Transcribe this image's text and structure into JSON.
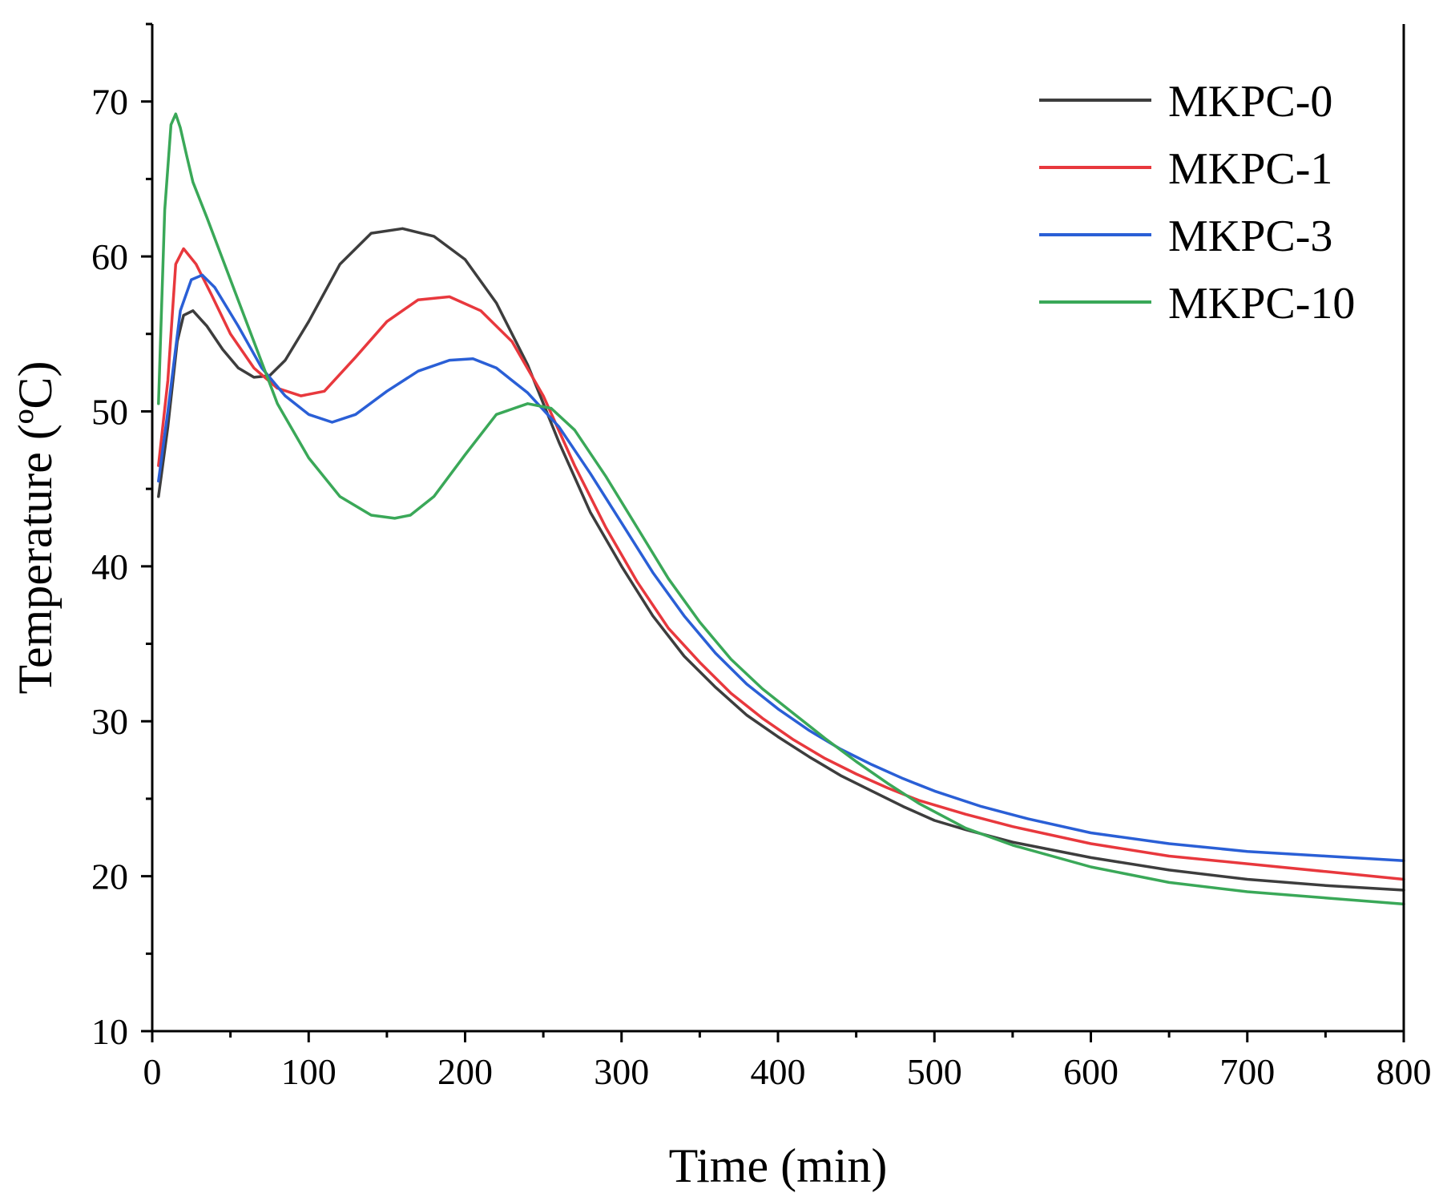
{
  "chart_data": {
    "type": "line",
    "title": "",
    "xlabel": "Time (min)",
    "ylabel": "Temperature (ºC)",
    "xlim": [
      0,
      800
    ],
    "ylim": [
      10,
      75
    ],
    "xticks": [
      0,
      100,
      200,
      300,
      400,
      500,
      600,
      700,
      800
    ],
    "yticks": [
      10,
      20,
      30,
      40,
      50,
      60,
      70
    ],
    "xtick_labels": [
      "0",
      "100",
      "200",
      "300",
      "400",
      "500",
      "600",
      "700",
      "800"
    ],
    "ytick_labels": [
      "10",
      "20",
      "30",
      "40",
      "50",
      "60",
      "70"
    ],
    "legend_position": "top-right",
    "grid": false,
    "series": [
      {
        "name": "MKPC-0",
        "color": "#3d3d3d",
        "x": [
          4,
          10,
          16,
          20,
          26,
          35,
          45,
          55,
          65,
          75,
          85,
          100,
          120,
          140,
          160,
          180,
          200,
          220,
          240,
          260,
          280,
          300,
          320,
          340,
          360,
          380,
          400,
          420,
          440,
          460,
          480,
          500,
          520,
          550,
          600,
          650,
          700,
          750,
          800
        ],
        "y": [
          44.5,
          49,
          54.5,
          56.2,
          56.5,
          55.5,
          54,
          52.8,
          52.2,
          52.3,
          53.3,
          55.8,
          59.5,
          61.5,
          61.8,
          61.3,
          59.8,
          57,
          53,
          48,
          43.5,
          40,
          36.8,
          34.2,
          32.2,
          30.4,
          29,
          27.7,
          26.5,
          25.5,
          24.5,
          23.6,
          23.0,
          22.2,
          21.2,
          20.4,
          19.8,
          19.4,
          19.1
        ]
      },
      {
        "name": "MKPC-1",
        "color": "#e8383d",
        "x": [
          4,
          10,
          15,
          20,
          28,
          38,
          50,
          65,
          80,
          95,
          110,
          130,
          150,
          170,
          190,
          210,
          230,
          250,
          270,
          290,
          310,
          330,
          350,
          370,
          390,
          410,
          430,
          450,
          470,
          490,
          520,
          550,
          600,
          650,
          700,
          750,
          800
        ],
        "y": [
          46.5,
          52,
          59.5,
          60.5,
          59.5,
          57.5,
          55,
          52.8,
          51.5,
          51.0,
          51.3,
          53.5,
          55.8,
          57.2,
          57.4,
          56.5,
          54.5,
          51,
          46.5,
          42.5,
          39,
          36,
          33.8,
          31.8,
          30.2,
          28.8,
          27.6,
          26.6,
          25.7,
          24.9,
          24,
          23.2,
          22.1,
          21.3,
          20.8,
          20.3,
          19.8
        ]
      },
      {
        "name": "MKPC-3",
        "color": "#2a5fd6",
        "x": [
          4,
          10,
          18,
          25,
          32,
          40,
          55,
          70,
          85,
          100,
          115,
          130,
          150,
          170,
          190,
          205,
          220,
          240,
          260,
          280,
          300,
          320,
          340,
          360,
          380,
          400,
          420,
          440,
          460,
          480,
          500,
          530,
          560,
          600,
          650,
          700,
          750,
          800
        ],
        "y": [
          45.5,
          50,
          56.5,
          58.5,
          58.8,
          58,
          55.5,
          52.8,
          51,
          49.8,
          49.3,
          49.8,
          51.3,
          52.6,
          53.3,
          53.4,
          52.8,
          51.2,
          49,
          46,
          42.8,
          39.6,
          36.8,
          34.4,
          32.4,
          30.8,
          29.4,
          28.2,
          27.2,
          26.3,
          25.5,
          24.5,
          23.7,
          22.8,
          22.1,
          21.6,
          21.3,
          21.0
        ]
      },
      {
        "name": "MKPC-10",
        "color": "#3aa858",
        "x": [
          4,
          8,
          12,
          15,
          18,
          22,
          26,
          35,
          50,
          65,
          80,
          100,
          120,
          140,
          155,
          165,
          180,
          200,
          220,
          240,
          255,
          270,
          290,
          310,
          330,
          350,
          370,
          390,
          410,
          430,
          450,
          470,
          490,
          520,
          550,
          600,
          650,
          700,
          750,
          800
        ],
        "y": [
          50.5,
          63,
          68.5,
          69.2,
          68.3,
          66.5,
          64.8,
          62.5,
          58.5,
          54.5,
          50.5,
          47,
          44.5,
          43.3,
          43.1,
          43.3,
          44.5,
          47.2,
          49.8,
          50.5,
          50.2,
          48.8,
          45.8,
          42.5,
          39.2,
          36.4,
          34.0,
          32.1,
          30.5,
          28.9,
          27.4,
          26.0,
          24.7,
          23.1,
          22.0,
          20.6,
          19.6,
          19.0,
          18.6,
          18.2
        ]
      }
    ]
  }
}
